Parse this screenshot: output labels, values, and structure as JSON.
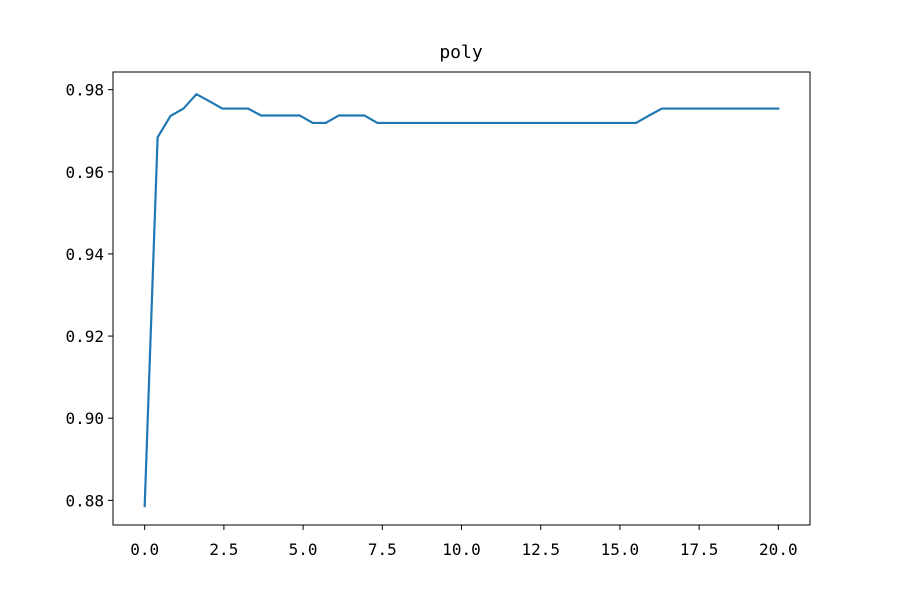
{
  "chart_data": {
    "type": "line",
    "title": "poly",
    "xlabel": "",
    "ylabel": "",
    "xlim": [
      -1.0,
      21.0
    ],
    "ylim": [
      0.874,
      0.9843
    ],
    "xticks": [
      0.0,
      2.5,
      5.0,
      7.5,
      10.0,
      12.5,
      15.0,
      17.5,
      20.0
    ],
    "xtick_labels": [
      "0.0",
      "2.5",
      "5.0",
      "7.5",
      "10.0",
      "12.5",
      "15.0",
      "17.5",
      "20.0"
    ],
    "yticks": [
      0.88,
      0.9,
      0.92,
      0.94,
      0.96,
      0.98
    ],
    "ytick_labels": [
      "0.88",
      "0.90",
      "0.92",
      "0.94",
      "0.96",
      "0.98"
    ],
    "grid": false,
    "legend": false,
    "series": [
      {
        "color": "#1f77b4",
        "x": [
          0.0,
          0.408,
          0.816,
          1.224,
          1.633,
          2.041,
          2.449,
          2.857,
          3.265,
          3.673,
          4.082,
          4.49,
          4.898,
          5.306,
          5.714,
          6.122,
          6.531,
          6.939,
          7.347,
          7.755,
          8.163,
          8.571,
          8.98,
          9.388,
          9.796,
          10.204,
          10.612,
          11.02,
          11.429,
          11.837,
          12.245,
          12.653,
          13.061,
          13.469,
          13.878,
          14.286,
          14.694,
          15.102,
          15.51,
          15.918,
          16.327,
          16.735,
          17.143,
          17.551,
          17.959,
          18.367,
          18.776,
          19.184,
          19.592,
          20.0
        ],
        "y": [
          0.8786,
          0.9684,
          0.9736,
          0.9754,
          0.9789,
          0.9772,
          0.9754,
          0.9754,
          0.9754,
          0.9737,
          0.9737,
          0.9737,
          0.9737,
          0.9719,
          0.9719,
          0.9737,
          0.9737,
          0.9737,
          0.9719,
          0.9719,
          0.9719,
          0.9719,
          0.9719,
          0.9719,
          0.9719,
          0.9719,
          0.9719,
          0.9719,
          0.9719,
          0.9719,
          0.9719,
          0.9719,
          0.9719,
          0.9719,
          0.9719,
          0.9719,
          0.9719,
          0.9719,
          0.9719,
          0.9737,
          0.9754,
          0.9754,
          0.9754,
          0.9754,
          0.9754,
          0.9754,
          0.9754,
          0.9754,
          0.9754,
          0.9754
        ]
      }
    ]
  }
}
